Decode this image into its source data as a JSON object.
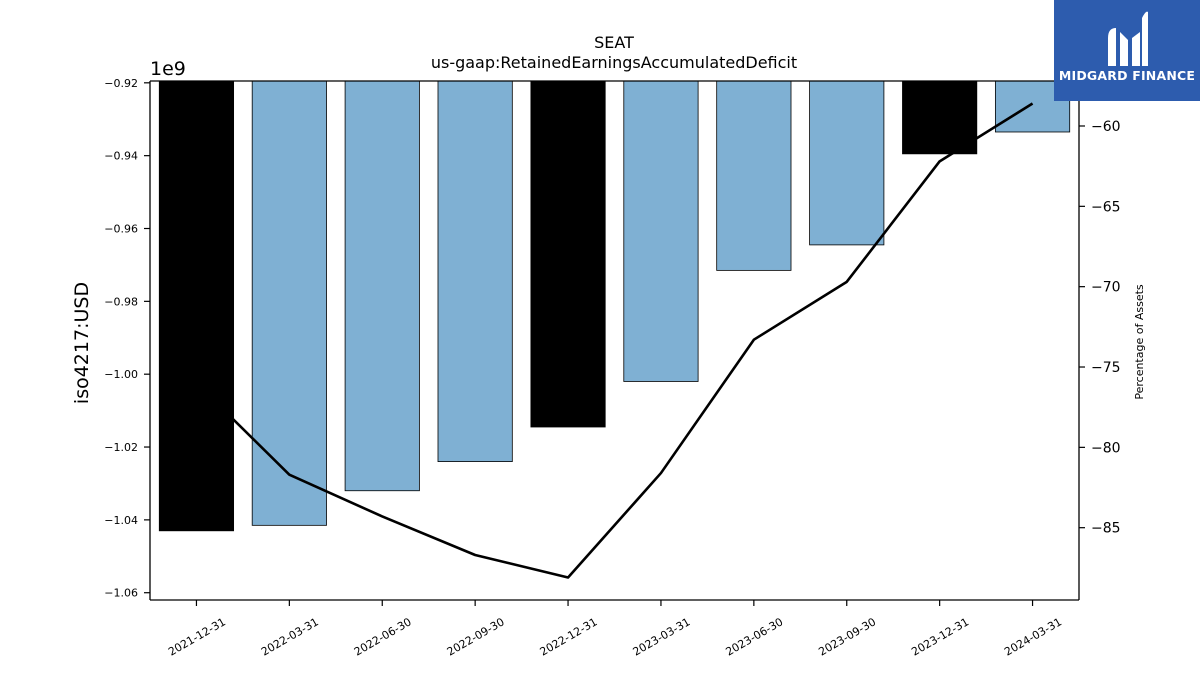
{
  "chart_data": {
    "type": "bar+line",
    "title": "SEAT",
    "subtitle": "us-gaap:RetainedEarningsAccumulatedDeficit",
    "ylabel": "iso4217:USD",
    "y_offset_label": "1e9",
    "y2label": "Percentage of Assets",
    "categories": [
      "2021-12-31",
      "2022-03-31",
      "2022-06-30",
      "2022-09-30",
      "2022-12-31",
      "2023-03-31",
      "2023-06-30",
      "2023-09-30",
      "2023-12-31",
      "2024-03-31"
    ],
    "series": [
      {
        "kind": "bar",
        "axis": "left",
        "values_1e9": [
          -1.043,
          -1.0415,
          -1.032,
          -1.024,
          -1.0145,
          -1.002,
          -0.9715,
          -0.9645,
          -0.9395,
          -0.9335
        ],
        "bar_colors": [
          "#000000",
          "#7fb0d3",
          "#7fb0d3",
          "#7fb0d3",
          "#000000",
          "#7fb0d3",
          "#7fb0d3",
          "#7fb0d3",
          "#000000",
          "#7fb0d3"
        ]
      },
      {
        "kind": "line",
        "axis": "right",
        "values": [
          -76.0,
          -81.7,
          -84.3,
          -86.7,
          -88.1,
          -81.6,
          -73.3,
          -69.7,
          -62.2,
          -58.6
        ],
        "color": "#000000"
      }
    ],
    "ylim": [
      -1.062,
      -0.9195
    ],
    "y_ticks": [
      -1.06,
      -1.04,
      -1.02,
      -1.0,
      -0.98,
      -0.96,
      -0.94,
      -0.92
    ],
    "y_tick_labels": [
      "−1.06",
      "−1.04",
      "−1.02",
      "−1.00",
      "−0.98",
      "−0.96",
      "−0.94",
      "−0.92"
    ],
    "y2lim": [
      -89.5,
      -57.2
    ],
    "y2_ticks": [
      -85,
      -80,
      -75,
      -70,
      -65,
      -60
    ],
    "y2_tick_labels": [
      "−85",
      "−80",
      "−75",
      "−70",
      "−65",
      "−60"
    ],
    "grid": false,
    "legend": "none"
  },
  "logo": {
    "text": "MIDGARD FINANCE",
    "color": "#2d5cae"
  }
}
